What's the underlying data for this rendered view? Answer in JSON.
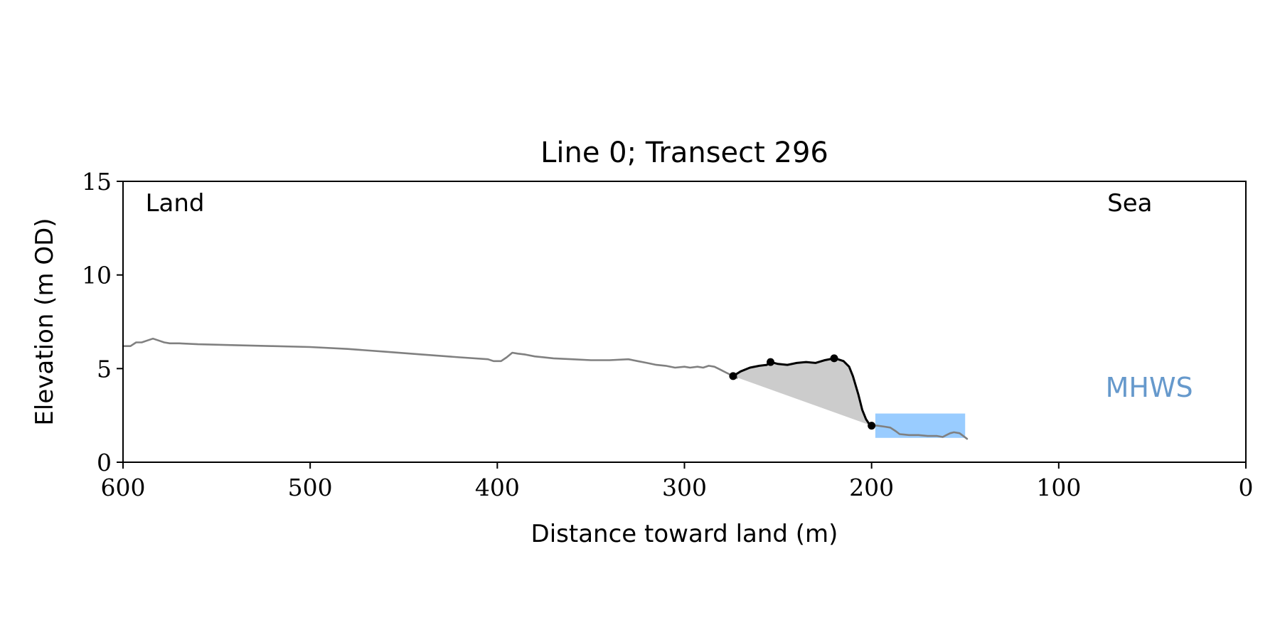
{
  "chart_data": {
    "type": "line",
    "title": "Line 0; Transect 296",
    "xlabel": "Distance toward land (m)",
    "ylabel": "Elevation (m OD)",
    "xlim": [
      600,
      0
    ],
    "ylim": [
      0,
      15
    ],
    "x_ticks": [
      600,
      500,
      400,
      300,
      200,
      100,
      0
    ],
    "y_ticks": [
      0,
      5,
      10,
      15
    ],
    "grid": false,
    "annotations": [
      {
        "text": "Land",
        "x": 588,
        "y": 13.4,
        "color": "#000000"
      },
      {
        "text": "Sea",
        "x": 62,
        "y": 13.4,
        "color": "#000000"
      },
      {
        "text": "MHWS",
        "x": 75,
        "y": 3.5,
        "color": "#6699cc"
      }
    ],
    "mhws_band": {
      "x_from": 198,
      "x_to": 150,
      "y_from": 1.3,
      "y_to": 2.6,
      "color": "#99ccff"
    },
    "series": [
      {
        "role": "profile",
        "color": "#808080",
        "x": [
          600,
          596,
          593,
          590,
          587,
          584,
          581,
          578,
          575,
          570,
          560,
          540,
          520,
          500,
          480,
          460,
          440,
          420,
          405,
          402,
          398,
          395,
          392,
          389,
          385,
          380,
          370,
          360,
          350,
          340,
          330,
          325,
          320,
          315,
          310,
          305,
          300,
          297,
          293,
          290,
          287,
          284,
          281,
          278,
          275,
          272
        ],
        "y": [
          6.2,
          6.2,
          6.4,
          6.4,
          6.5,
          6.6,
          6.5,
          6.4,
          6.35,
          6.35,
          6.3,
          6.25,
          6.2,
          6.15,
          6.05,
          5.9,
          5.75,
          5.6,
          5.5,
          5.4,
          5.4,
          5.6,
          5.85,
          5.8,
          5.75,
          5.65,
          5.55,
          5.5,
          5.45,
          5.45,
          5.5,
          5.4,
          5.3,
          5.2,
          5.15,
          5.05,
          5.1,
          5.05,
          5.1,
          5.05,
          5.15,
          5.1,
          4.95,
          4.8,
          4.65,
          4.5
        ]
      },
      {
        "role": "profile",
        "color": "#808080",
        "x": [
          200,
          197,
          193,
          190,
          187,
          185,
          180,
          175,
          170,
          165,
          162,
          160,
          158,
          156,
          153,
          151,
          149
        ],
        "y": [
          1.95,
          1.95,
          1.9,
          1.85,
          1.65,
          1.5,
          1.45,
          1.45,
          1.4,
          1.4,
          1.35,
          1.45,
          1.55,
          1.6,
          1.55,
          1.4,
          1.25
        ]
      },
      {
        "role": "dune",
        "color": "#000000",
        "x": [
          274,
          270,
          265,
          260,
          256,
          254,
          250,
          245,
          240,
          235,
          230,
          225,
          220,
          218,
          215,
          212,
          210,
          207,
          205,
          203,
          201,
          200
        ],
        "y": [
          4.6,
          4.85,
          5.05,
          5.15,
          5.2,
          5.35,
          5.25,
          5.2,
          5.3,
          5.35,
          5.3,
          5.45,
          5.55,
          5.5,
          5.4,
          5.1,
          4.6,
          3.6,
          2.8,
          2.3,
          2.0,
          1.95
        ]
      }
    ],
    "dune_points": [
      {
        "x": 274,
        "y": 4.6
      },
      {
        "x": 254,
        "y": 5.35
      },
      {
        "x": 220,
        "y": 5.55
      },
      {
        "x": 200,
        "y": 1.95
      }
    ],
    "fill_color": "#cccccc"
  }
}
